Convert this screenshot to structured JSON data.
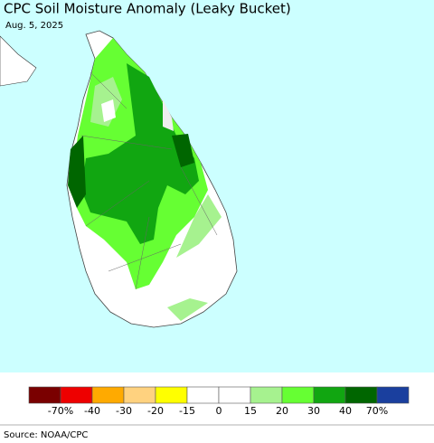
{
  "title": "CPC Soil Moisture Anomaly (Leaky Bucket)",
  "date": "Aug. 5, 2025",
  "legend": {
    "colors": [
      "#7a0000",
      "#ee0000",
      "#ffaa00",
      "#ffd27f",
      "#ffff00",
      "#ffffff",
      "#ffffff",
      "#a6f28f",
      "#66ff33",
      "#11a611",
      "#006600",
      "#1a3f9e"
    ],
    "labels": [
      "-70%",
      "-40",
      "-30",
      "-20",
      "-15",
      "0",
      "15",
      "20",
      "30",
      "40",
      "70%"
    ]
  },
  "source": "Source: NOAA/CPC"
}
